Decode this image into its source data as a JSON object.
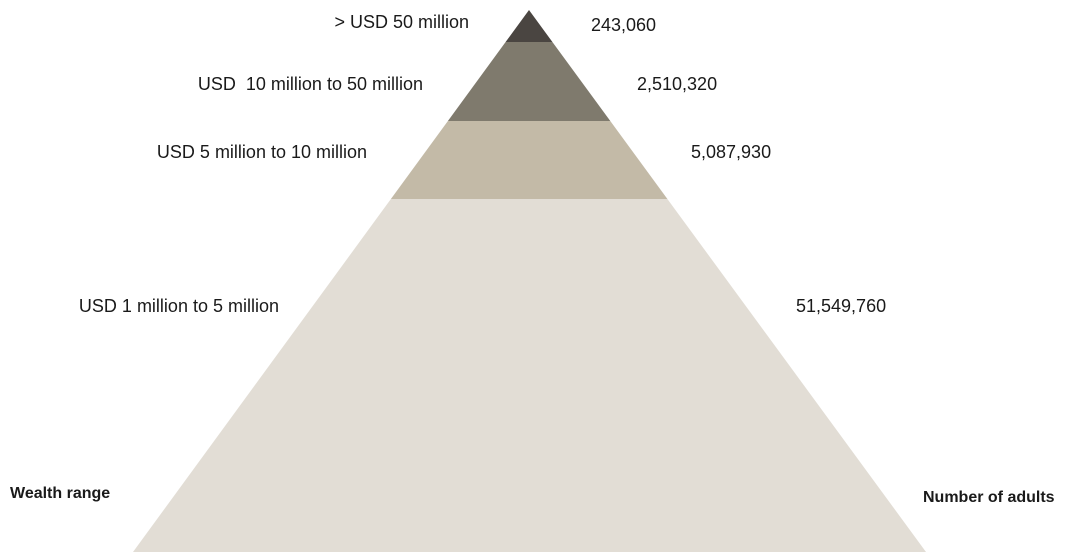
{
  "tiers": [
    {
      "wealth_range": "> USD 50 million",
      "number_of_adults": "243,060",
      "value": 243060,
      "color": "#4a4541"
    },
    {
      "wealth_range": "USD  10 million to 50 million",
      "number_of_adults": "2,510,320",
      "value": 2510320,
      "color": "#7f7a6d"
    },
    {
      "wealth_range": "USD 5 million to 10 million",
      "number_of_adults": "5,087,930",
      "value": 5087930,
      "color": "#c3baa7"
    },
    {
      "wealth_range": "USD 1 million to 5 million",
      "number_of_adults": "51,549,760",
      "value": 51549760,
      "color": "#e2ddd5"
    }
  ],
  "left_heading": "Wealth range",
  "right_heading": "Number of adults"
}
